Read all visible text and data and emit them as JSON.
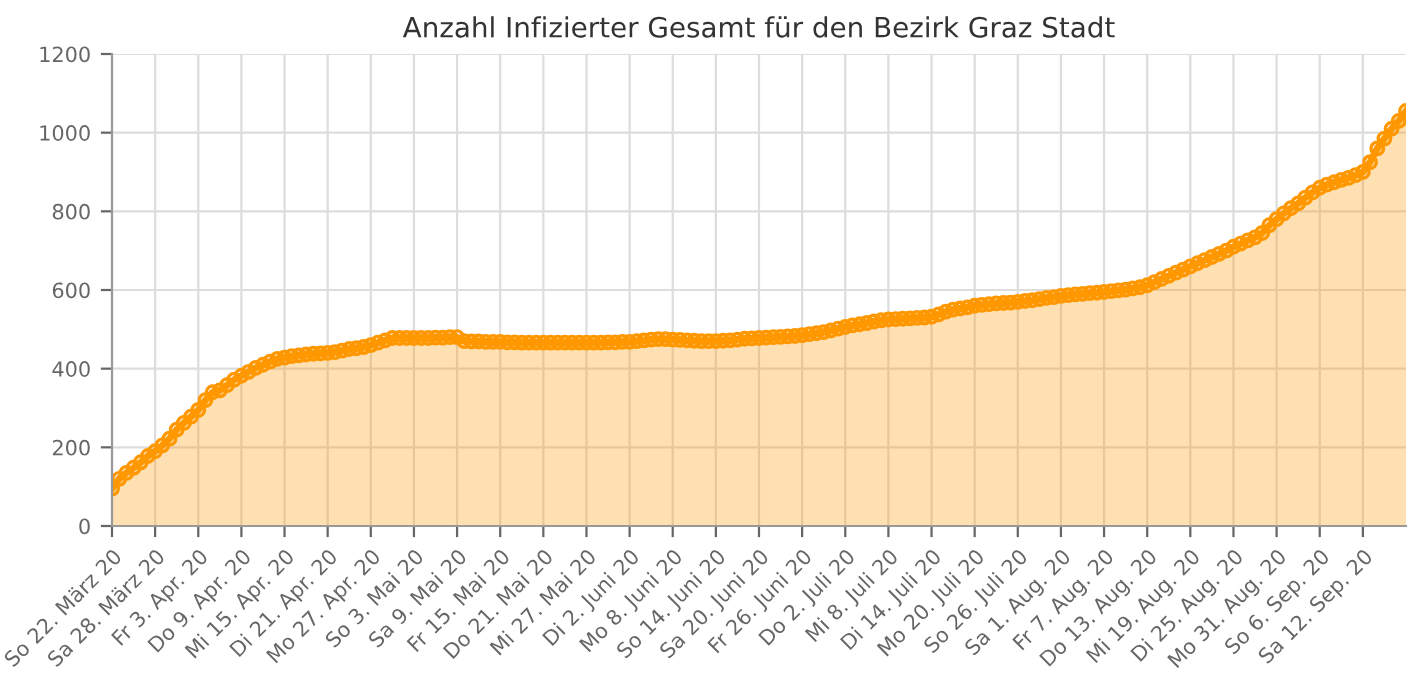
{
  "chart_data": {
    "type": "area",
    "title": "Anzahl Infizierter Gesamt für den Bezirk Graz Stadt",
    "categories": [
      "So 22. März 20",
      null,
      null,
      null,
      null,
      null,
      "Sa 28. März 20",
      null,
      null,
      null,
      null,
      null,
      "Fr 3. Apr. 20",
      null,
      null,
      null,
      null,
      null,
      "Do 9. Apr. 20",
      null,
      null,
      null,
      null,
      null,
      "Mi 15. Apr. 20",
      null,
      null,
      null,
      null,
      null,
      "Di 21. Apr. 20",
      null,
      null,
      null,
      null,
      null,
      "Mo 27. Apr. 20",
      null,
      null,
      null,
      null,
      null,
      "So 3. Mai 20",
      null,
      null,
      null,
      null,
      null,
      "Sa 9. Mai 20",
      null,
      null,
      null,
      null,
      null,
      "Fr 15. Mai 20",
      null,
      null,
      null,
      null,
      null,
      "Do 21. Mai 20",
      null,
      null,
      null,
      null,
      null,
      "Mi 27. Mai 20",
      null,
      null,
      null,
      null,
      null,
      "Di 2. Juni 20",
      null,
      null,
      null,
      null,
      null,
      "Mo 8. Juni 20",
      null,
      null,
      null,
      null,
      null,
      "So 14. Juni 20",
      null,
      null,
      null,
      null,
      null,
      "Sa 20. Juni 20",
      null,
      null,
      null,
      null,
      null,
      "Fr 26. Juni 20",
      null,
      null,
      null,
      null,
      null,
      "Do 2. Juli 20",
      null,
      null,
      null,
      null,
      null,
      "Mi 8. Juli 20",
      null,
      null,
      null,
      null,
      null,
      "Di 14. Juli 20",
      null,
      null,
      null,
      null,
      null,
      "Mo 20. Juli 20",
      null,
      null,
      null,
      null,
      null,
      "So 26. Juli 20",
      null,
      null,
      null,
      null,
      null,
      "Sa 1. Aug. 20",
      null,
      null,
      null,
      null,
      null,
      "Fr 7. Aug. 20",
      null,
      null,
      null,
      null,
      null,
      "Do 13. Aug. 20",
      null,
      null,
      null,
      null,
      null,
      "Mi 19. Aug. 20",
      null,
      null,
      null,
      null,
      null,
      "Di 25. Aug. 20",
      null,
      null,
      null,
      null,
      null,
      "Mo 31. Aug. 20",
      null,
      null,
      null,
      null,
      null,
      "So 6. Sep. 20",
      null,
      null,
      null,
      null,
      null,
      "Sa 12. Sep. 20",
      null,
      null,
      null,
      null,
      null,
      null
    ],
    "series": [
      {
        "color": "#ff9800",
        "values": [
          95,
          120,
          135,
          148,
          162,
          178,
          190,
          205,
          222,
          245,
          262,
          278,
          295,
          320,
          340,
          345,
          358,
          372,
          382,
          392,
          402,
          410,
          418,
          425,
          428,
          432,
          434,
          436,
          438,
          439,
          440,
          442,
          446,
          450,
          452,
          455,
          460,
          466,
          472,
          478,
          478,
          478,
          478,
          478,
          478,
          479,
          479,
          480,
          480,
          470,
          469,
          469,
          468,
          468,
          468,
          467,
          467,
          466,
          466,
          466,
          466,
          466,
          466,
          466,
          466,
          466,
          466,
          466,
          466,
          467,
          467,
          468,
          468,
          470,
          472,
          474,
          475,
          475,
          474,
          473,
          472,
          471,
          470,
          470,
          470,
          471,
          472,
          474,
          476,
          477,
          478,
          479,
          480,
          481,
          482,
          483,
          485,
          488,
          490,
          493,
          497,
          502,
          506,
          510,
          513,
          516,
          520,
          523,
          525,
          526,
          527,
          528,
          529,
          530,
          532,
          538,
          545,
          550,
          553,
          556,
          560,
          562,
          564,
          566,
          567,
          568,
          570,
          572,
          574,
          577,
          580,
          582,
          585,
          587,
          589,
          590,
          592,
          593,
          595,
          597,
          599,
          601,
          604,
          607,
          612,
          620,
          628,
          636,
          644,
          652,
          660,
          668,
          676,
          684,
          692,
          700,
          710,
          718,
          726,
          734,
          745,
          765,
          780,
          795,
          808,
          820,
          835,
          848,
          860,
          868,
          874,
          880,
          885,
          892,
          900,
          925,
          960,
          985,
          1010,
          1030,
          1055
        ]
      }
    ],
    "ylim": [
      0,
      1200
    ],
    "yticks": [
      0,
      200,
      400,
      600,
      800,
      1000,
      1200
    ],
    "grid": true,
    "marker": "circle",
    "legend": false
  }
}
